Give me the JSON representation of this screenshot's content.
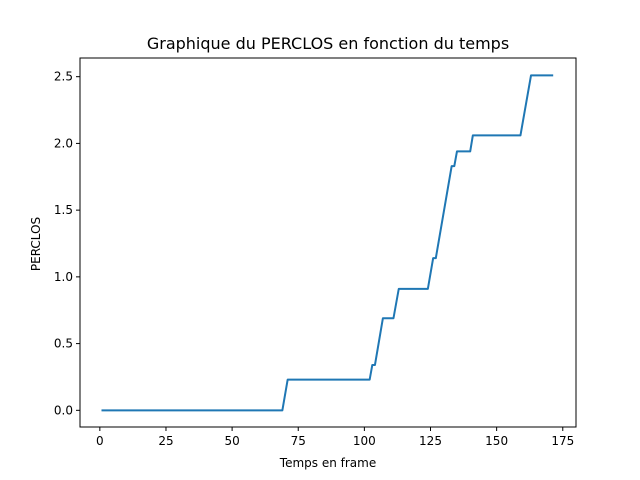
{
  "chart_data": {
    "type": "line",
    "title": "Graphique du PERCLOS en fonction du temps",
    "xlabel": "Temps en frame",
    "ylabel": "PERCLOS",
    "xlim": [
      -7.5,
      180
    ],
    "ylim": [
      -0.125,
      2.64
    ],
    "xticks": [
      0,
      25,
      50,
      75,
      100,
      125,
      150,
      175
    ],
    "xtick_labels": [
      "0",
      "25",
      "50",
      "75",
      "100",
      "125",
      "150",
      "175"
    ],
    "yticks": [
      0.0,
      0.5,
      1.0,
      1.5,
      2.0,
      2.5
    ],
    "ytick_labels": [
      "0.0",
      "0.5",
      "1.0",
      "1.5",
      "2.0",
      "2.5"
    ],
    "grid": false,
    "series": [
      {
        "color": "#1f77b4",
        "x": [
          1,
          69,
          71,
          102,
          103,
          104,
          107,
          111,
          113,
          124,
          126,
          127,
          133,
          134,
          135,
          140,
          141,
          159,
          163,
          171
        ],
        "y": [
          0.0,
          0.0,
          0.23,
          0.23,
          0.34,
          0.34,
          0.69,
          0.69,
          0.91,
          0.91,
          1.14,
          1.14,
          1.83,
          1.83,
          1.94,
          1.94,
          2.06,
          2.06,
          2.51,
          2.51
        ]
      }
    ]
  }
}
